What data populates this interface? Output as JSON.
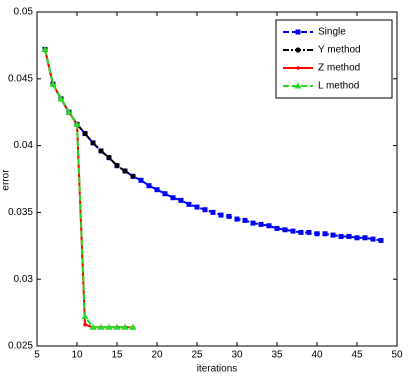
{
  "chart_data": {
    "type": "line",
    "xlabel": "iterations",
    "ylabel": "error",
    "xlim": [
      5,
      50
    ],
    "xticks": [
      5,
      10,
      15,
      20,
      25,
      30,
      35,
      40,
      45,
      50
    ],
    "ylim": [
      0.025,
      0.05
    ],
    "yticks": [
      0.025,
      0.03,
      0.035,
      0.04,
      0.045,
      0.05
    ],
    "grid": false,
    "legend": "upper right",
    "series": [
      {
        "name": "Single",
        "color": "#0000ff",
        "line": "dashed",
        "marker": "square",
        "x": [
          6,
          7,
          8,
          9,
          10,
          11,
          12,
          13,
          14,
          15,
          16,
          17,
          18,
          19,
          20,
          21,
          22,
          23,
          24,
          25,
          26,
          27,
          28,
          29,
          30,
          31,
          32,
          33,
          34,
          35,
          36,
          37,
          38,
          39,
          40,
          41,
          42,
          43,
          44,
          45,
          46,
          47,
          48
        ],
        "values": [
          0.0472,
          0.0446,
          0.0435,
          0.0425,
          0.0416,
          0.0409,
          0.0402,
          0.0396,
          0.0391,
          0.0385,
          0.0381,
          0.0377,
          0.0374,
          0.037,
          0.0367,
          0.0364,
          0.0361,
          0.0359,
          0.0356,
          0.0354,
          0.0352,
          0.035,
          0.0348,
          0.0347,
          0.0345,
          0.0344,
          0.0342,
          0.0341,
          0.034,
          0.0338,
          0.0337,
          0.0336,
          0.0335,
          0.0335,
          0.0334,
          0.0334,
          0.0333,
          0.0332,
          0.0332,
          0.0331,
          0.0331,
          0.033,
          0.0329
        ]
      },
      {
        "name": "Y method",
        "color": "#000000",
        "line": "dashdot",
        "marker": "circle",
        "x": [
          6,
          7,
          8,
          9,
          10,
          11,
          12,
          13,
          14,
          15,
          16,
          17
        ],
        "values": [
          0.0472,
          0.0446,
          0.0435,
          0.0425,
          0.0416,
          0.0409,
          0.0402,
          0.0396,
          0.0391,
          0.0385,
          0.0381,
          0.0377
        ]
      },
      {
        "name": "Z method",
        "color": "#ff0000",
        "line": "solid",
        "marker": "dot",
        "x": [
          6,
          7,
          8,
          9,
          10,
          11,
          12,
          13,
          14,
          15,
          16,
          17
        ],
        "values": [
          0.0472,
          0.0446,
          0.0435,
          0.0425,
          0.0416,
          0.0266,
          0.0264,
          0.0264,
          0.0264,
          0.0264,
          0.0264,
          0.0264
        ]
      },
      {
        "name": "L method",
        "color": "#22dd22",
        "line": "dashed",
        "marker": "triangle",
        "x": [
          6,
          7,
          8,
          9,
          10,
          11,
          12,
          13,
          14,
          15,
          16,
          17
        ],
        "values": [
          0.0472,
          0.0446,
          0.0435,
          0.0425,
          0.0416,
          0.0272,
          0.0264,
          0.0264,
          0.0264,
          0.0264,
          0.0264,
          0.0264
        ]
      }
    ]
  }
}
